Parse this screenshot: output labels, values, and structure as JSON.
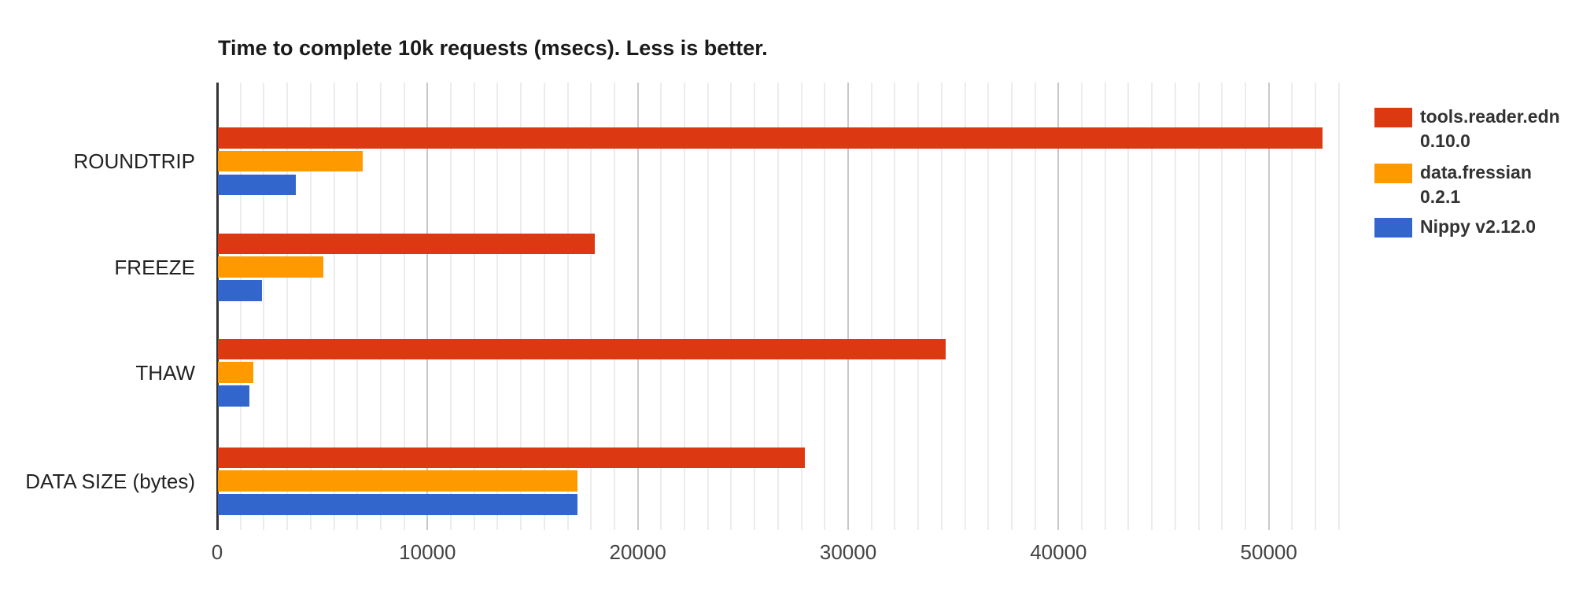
{
  "title": "Time to complete 10k requests (msecs). Less is better.",
  "chart_data": {
    "type": "bar",
    "orientation": "horizontal",
    "title": "Time to complete 10k requests (msecs). Less is better.",
    "xlabel": "",
    "ylabel": "",
    "categories": [
      "ROUNDTRIP",
      "FREEZE",
      "THAW",
      "DATA SIZE (bytes)"
    ],
    "series": [
      {
        "name": "tools.reader.edn 0.10.0",
        "legend_lines": [
          "tools.reader.edn",
          "0.10.0"
        ],
        "color": "#dc3912",
        "values": [
          52500,
          17900,
          34600,
          27900
        ]
      },
      {
        "name": "data.fressian 0.2.1",
        "legend_lines": [
          "data.fressian",
          "0.2.1"
        ],
        "color": "#ff9900",
        "values": [
          6900,
          5000,
          1700,
          17100
        ]
      },
      {
        "name": "Nippy v2.12.0",
        "legend_lines": [
          "Nippy v2.12.0"
        ],
        "color": "#3366cc",
        "values": [
          3700,
          2100,
          1500,
          17100
        ]
      }
    ],
    "x_ticks": [
      0,
      10000,
      20000,
      30000,
      40000,
      50000
    ],
    "x_tick_labels": [
      "0",
      "10000",
      "20000",
      "30000",
      "40000",
      "50000"
    ],
    "xlim": [
      0,
      54500
    ],
    "grid": true,
    "minor_gridlines_per_major_interval": 8,
    "legend_position": "right"
  },
  "colors": {
    "background": "#ffffff",
    "axis_line": "#333333",
    "major_gridline": "#c9c9c9",
    "minor_gridline": "#ececec",
    "title_text": "#1a1a1a",
    "category_text": "#222222",
    "tick_text": "#444444",
    "legend_text": "#333333"
  }
}
